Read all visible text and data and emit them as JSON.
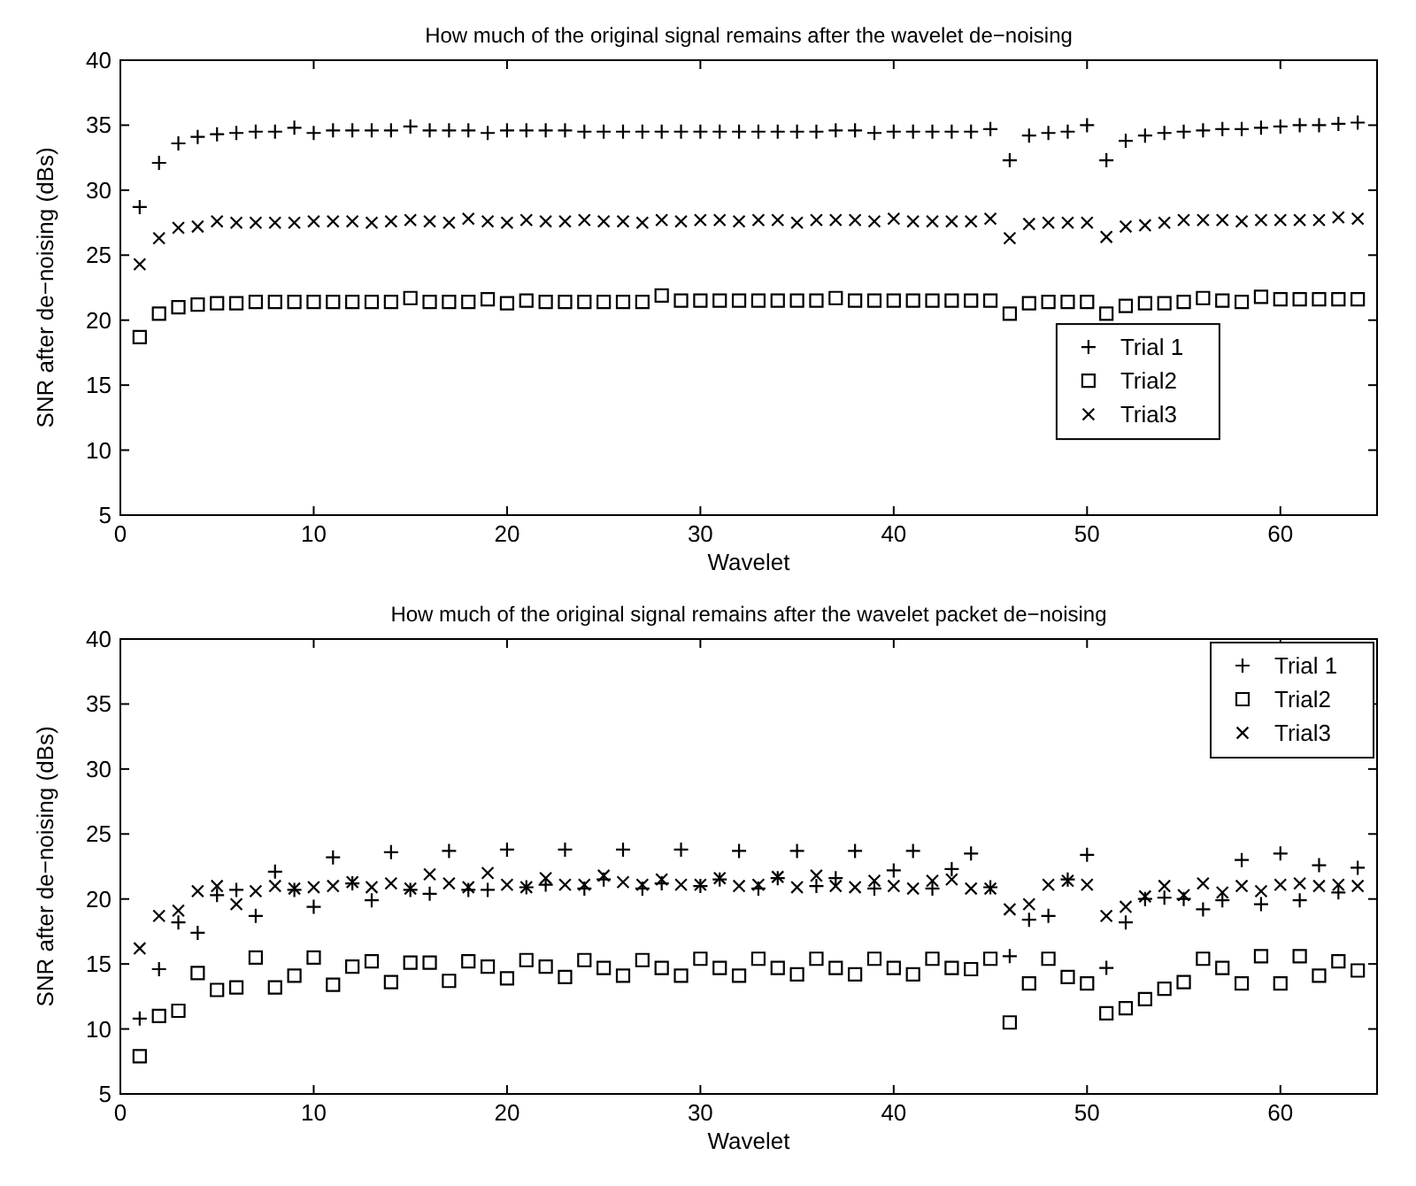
{
  "chart_data": [
    {
      "type": "scatter",
      "title": "How much of the original signal remains after the wavelet de−noising",
      "xlabel": "Wavelet",
      "ylabel": "SNR after de−noising (dBs)",
      "xlim": [
        0,
        65
      ],
      "ylim": [
        5,
        40
      ],
      "xticks": [
        0,
        10,
        20,
        30,
        40,
        50,
        60
      ],
      "yticks": [
        5,
        10,
        15,
        20,
        25,
        30,
        35,
        40
      ],
      "grid": false,
      "legend": "right",
      "x": [
        1,
        2,
        3,
        4,
        5,
        6,
        7,
        8,
        9,
        10,
        11,
        12,
        13,
        14,
        15,
        16,
        17,
        18,
        19,
        20,
        21,
        22,
        23,
        24,
        25,
        26,
        27,
        28,
        29,
        30,
        31,
        32,
        33,
        34,
        35,
        36,
        37,
        38,
        39,
        40,
        41,
        42,
        43,
        44,
        45,
        46,
        47,
        48,
        49,
        50,
        51,
        52,
        53,
        54,
        55,
        56,
        57,
        58,
        59,
        60,
        61,
        62,
        63,
        64
      ],
      "series": [
        {
          "name": "Trial 1",
          "color": "#000000",
          "marker": "plus",
          "values": [
            28.7,
            32.1,
            33.6,
            34.1,
            34.3,
            34.4,
            34.5,
            34.5,
            34.8,
            34.4,
            34.6,
            34.6,
            34.6,
            34.6,
            34.9,
            34.6,
            34.6,
            34.6,
            34.4,
            34.6,
            34.6,
            34.6,
            34.6,
            34.5,
            34.5,
            34.5,
            34.5,
            34.5,
            34.5,
            34.5,
            34.5,
            34.5,
            34.5,
            34.5,
            34.5,
            34.5,
            34.6,
            34.6,
            34.4,
            34.5,
            34.5,
            34.5,
            34.5,
            34.5,
            34.7,
            32.3,
            34.2,
            34.4,
            34.5,
            35.0,
            32.3,
            33.8,
            34.2,
            34.4,
            34.5,
            34.6,
            34.7,
            34.7,
            34.8,
            34.9,
            35.0,
            35.0,
            35.1,
            35.2
          ]
        },
        {
          "name": "Trial2",
          "color": "#000000",
          "marker": "square",
          "values": [
            18.7,
            20.5,
            21.0,
            21.2,
            21.3,
            21.3,
            21.4,
            21.4,
            21.4,
            21.4,
            21.4,
            21.4,
            21.4,
            21.4,
            21.7,
            21.4,
            21.4,
            21.4,
            21.6,
            21.3,
            21.5,
            21.4,
            21.4,
            21.4,
            21.4,
            21.4,
            21.4,
            21.9,
            21.5,
            21.5,
            21.5,
            21.5,
            21.5,
            21.5,
            21.5,
            21.5,
            21.7,
            21.5,
            21.5,
            21.5,
            21.5,
            21.5,
            21.5,
            21.5,
            21.5,
            20.5,
            21.3,
            21.4,
            21.4,
            21.4,
            20.5,
            21.1,
            21.3,
            21.3,
            21.4,
            21.7,
            21.5,
            21.4,
            21.8,
            21.6,
            21.6,
            21.6,
            21.6,
            21.6
          ]
        },
        {
          "name": "Trial3",
          "color": "#000000",
          "marker": "cross",
          "values": [
            24.3,
            26.3,
            27.1,
            27.2,
            27.6,
            27.5,
            27.5,
            27.5,
            27.5,
            27.6,
            27.6,
            27.6,
            27.5,
            27.6,
            27.7,
            27.6,
            27.5,
            27.8,
            27.6,
            27.5,
            27.7,
            27.6,
            27.6,
            27.7,
            27.6,
            27.6,
            27.5,
            27.7,
            27.6,
            27.7,
            27.7,
            27.6,
            27.7,
            27.7,
            27.5,
            27.7,
            27.7,
            27.7,
            27.6,
            27.8,
            27.6,
            27.6,
            27.6,
            27.6,
            27.8,
            26.3,
            27.4,
            27.5,
            27.5,
            27.5,
            26.4,
            27.2,
            27.3,
            27.5,
            27.7,
            27.7,
            27.7,
            27.6,
            27.7,
            27.7,
            27.7,
            27.7,
            27.9,
            27.8
          ]
        }
      ]
    },
    {
      "type": "scatter",
      "title": "How much of the original signal remains after the wavelet packet de−noising",
      "xlabel": "Wavelet",
      "ylabel": "SNR after de−noising (dBs)",
      "xlim": [
        0,
        65
      ],
      "ylim": [
        5,
        40
      ],
      "xticks": [
        0,
        10,
        20,
        30,
        40,
        50,
        60
      ],
      "yticks": [
        5,
        10,
        15,
        20,
        25,
        30,
        35,
        40
      ],
      "grid": false,
      "legend": "top right",
      "x": [
        1,
        2,
        3,
        4,
        5,
        6,
        7,
        8,
        9,
        10,
        11,
        12,
        13,
        14,
        15,
        16,
        17,
        18,
        19,
        20,
        21,
        22,
        23,
        24,
        25,
        26,
        27,
        28,
        29,
        30,
        31,
        32,
        33,
        34,
        35,
        36,
        37,
        38,
        39,
        40,
        41,
        42,
        43,
        44,
        45,
        46,
        47,
        48,
        49,
        50,
        51,
        52,
        53,
        54,
        55,
        56,
        57,
        58,
        59,
        60,
        61,
        62,
        63,
        64
      ],
      "series": [
        {
          "name": "Trial 1",
          "color": "#000000",
          "marker": "plus",
          "values": [
            10.8,
            14.6,
            18.2,
            17.4,
            20.3,
            20.7,
            18.7,
            22.1,
            20.7,
            19.4,
            23.2,
            21.2,
            19.9,
            23.6,
            20.7,
            20.4,
            23.7,
            20.7,
            20.7,
            23.8,
            20.9,
            21.1,
            23.8,
            20.8,
            21.5,
            23.8,
            20.8,
            21.2,
            23.8,
            21.0,
            21.5,
            23.7,
            20.8,
            21.6,
            23.7,
            21.0,
            21.6,
            23.7,
            20.8,
            22.2,
            23.7,
            20.8,
            22.3,
            23.5,
            20.9,
            15.6,
            18.4,
            18.7,
            21.5,
            23.4,
            14.7,
            18.2,
            20.0,
            20.1,
            20.0,
            19.2,
            19.9,
            23.0,
            19.6,
            23.5,
            19.9,
            22.6,
            20.5,
            22.4
          ]
        },
        {
          "name": "Trial2",
          "color": "#000000",
          "marker": "square",
          "values": [
            7.9,
            11.0,
            11.4,
            14.3,
            13.0,
            13.2,
            15.5,
            13.2,
            14.1,
            15.5,
            13.4,
            14.8,
            15.2,
            13.6,
            15.1,
            15.1,
            13.7,
            15.2,
            14.8,
            13.9,
            15.3,
            14.8,
            14.0,
            15.3,
            14.7,
            14.1,
            15.3,
            14.7,
            14.1,
            15.4,
            14.7,
            14.1,
            15.4,
            14.7,
            14.2,
            15.4,
            14.7,
            14.2,
            15.4,
            14.7,
            14.2,
            15.4,
            14.7,
            14.6,
            15.4,
            10.5,
            13.5,
            15.4,
            14.0,
            13.5,
            11.2,
            11.6,
            12.3,
            13.1,
            13.6,
            15.4,
            14.7,
            13.5,
            15.6,
            13.5,
            15.6,
            14.1,
            15.2,
            14.5
          ]
        },
        {
          "name": "Trial3",
          "color": "#000000",
          "marker": "cross",
          "values": [
            16.2,
            18.7,
            19.1,
            20.6,
            21.0,
            19.6,
            20.6,
            21.0,
            20.8,
            20.9,
            21.0,
            21.3,
            20.9,
            21.2,
            20.8,
            21.9,
            21.2,
            20.9,
            22.0,
            21.1,
            20.9,
            21.6,
            21.1,
            21.1,
            21.8,
            21.3,
            21.1,
            21.5,
            21.1,
            21.1,
            21.6,
            21.0,
            21.1,
            21.7,
            20.9,
            21.8,
            21.0,
            20.9,
            21.4,
            21.0,
            20.8,
            21.4,
            21.5,
            20.8,
            20.8,
            19.2,
            19.6,
            21.1,
            21.4,
            21.1,
            18.7,
            19.4,
            20.2,
            21.0,
            20.3,
            21.2,
            20.5,
            21.0,
            20.6,
            21.1,
            21.2,
            21.0,
            21.1,
            21.0
          ]
        }
      ]
    }
  ]
}
